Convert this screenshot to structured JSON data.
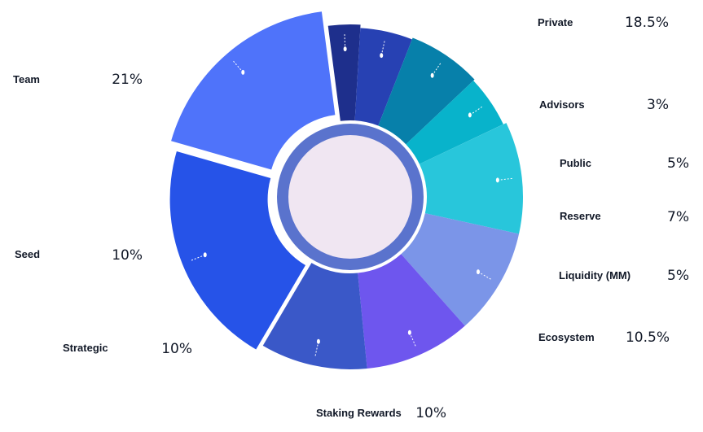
{
  "chart_data": {
    "type": "pie",
    "series": [
      {
        "name": "Private",
        "value": 18.5,
        "label": "18.5%",
        "color": "#4F73FA"
      },
      {
        "name": "Advisors",
        "value": 3,
        "label": "3%",
        "color": "#1E2F8C"
      },
      {
        "name": "Public",
        "value": 5,
        "label": "5%",
        "color": "#2741B3"
      },
      {
        "name": "Reserve",
        "value": 7,
        "label": "7%",
        "color": "#0780AA"
      },
      {
        "name": "Liquidity (MM)",
        "value": 5,
        "label": "5%",
        "color": "#08B3CB"
      },
      {
        "name": "Ecosystem",
        "value": 10.5,
        "label": "10.5%",
        "color": "#28C6DB"
      },
      {
        "name": "Staking Rewards",
        "value": 10,
        "label": "10%",
        "color": "#7B95E8"
      },
      {
        "name": "Strategic",
        "value": 10,
        "label": "10%",
        "color": "#6E56EE"
      },
      {
        "name": "Seed",
        "value": 10,
        "label": "10%",
        "color": "#3A58C8"
      },
      {
        "name": "Team",
        "value": 21,
        "label": "21%",
        "color": "#2653E8"
      }
    ],
    "center_color": "#F0E6F2",
    "ring_color": "#3D5BC4"
  }
}
